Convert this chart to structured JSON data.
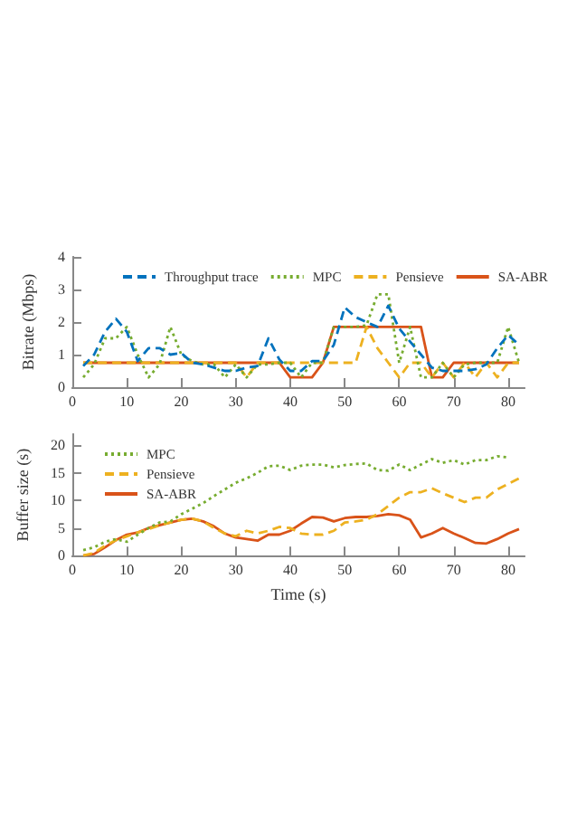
{
  "chart_data": [
    {
      "type": "line",
      "ylabel": "Bitrate (Mbps)",
      "x": [
        2,
        4,
        6,
        8,
        10,
        12,
        14,
        16,
        18,
        20,
        22,
        24,
        26,
        28,
        30,
        32,
        34,
        36,
        38,
        40,
        42,
        44,
        46,
        48,
        50,
        52,
        54,
        56,
        58,
        60,
        62,
        64,
        66,
        68,
        70,
        72,
        74,
        76,
        78,
        80,
        82
      ],
      "xlim": [
        0,
        83
      ],
      "xticks": [
        0,
        10,
        20,
        30,
        40,
        50,
        60,
        70,
        80
      ],
      "ylim": [
        0,
        4
      ],
      "yticks": [
        0,
        1,
        2,
        3,
        4
      ],
      "grid": false,
      "legend": "top",
      "marker": "none",
      "series": [
        {
          "name": "Throughput trace",
          "color": "#0072bd",
          "line_style": "dashed",
          "values": [
            0.65,
            1.0,
            1.7,
            2.1,
            1.7,
            0.8,
            1.2,
            1.2,
            1.0,
            1.05,
            0.75,
            0.7,
            0.6,
            0.5,
            0.5,
            0.6,
            0.65,
            1.5,
            0.85,
            0.5,
            0.5,
            0.8,
            0.8,
            1.3,
            2.45,
            2.15,
            2.0,
            1.85,
            2.5,
            1.8,
            1.4,
            1.0,
            0.6,
            0.5,
            0.5,
            0.5,
            0.55,
            0.7,
            1.2,
            1.6,
            1.3
          ]
        },
        {
          "name": "MPC",
          "color": "#77ac30",
          "line_style": "dotted",
          "values": [
            0.3,
            0.7,
            1.5,
            1.5,
            1.85,
            1.0,
            0.3,
            0.7,
            1.85,
            1.0,
            0.8,
            0.7,
            0.7,
            0.3,
            0.7,
            0.3,
            0.7,
            0.7,
            0.75,
            0.75,
            0.3,
            0.75,
            0.75,
            1.85,
            1.85,
            1.85,
            1.9,
            2.85,
            2.85,
            0.75,
            1.85,
            0.3,
            0.3,
            0.75,
            0.3,
            0.7,
            0.75,
            0.75,
            0.75,
            1.85,
            0.75
          ]
        },
        {
          "name": "Pensieve",
          "color": "#edb120",
          "line_style": "dashed",
          "values": [
            0.75,
            0.75,
            0.75,
            0.75,
            0.75,
            0.75,
            0.75,
            0.75,
            0.75,
            0.75,
            0.75,
            0.75,
            0.75,
            0.75,
            0.75,
            0.3,
            0.75,
            0.75,
            0.75,
            0.75,
            0.75,
            0.75,
            0.75,
            0.75,
            0.75,
            0.75,
            1.85,
            1.2,
            0.75,
            0.3,
            0.75,
            0.75,
            0.3,
            0.75,
            0.3,
            0.75,
            0.3,
            0.75,
            0.3,
            0.75,
            0.75
          ]
        },
        {
          "name": "SA-ABR",
          "color": "#d95319",
          "line_style": "solid",
          "values": [
            0.75,
            0.75,
            0.75,
            0.75,
            0.75,
            0.75,
            0.75,
            0.75,
            0.75,
            0.75,
            0.75,
            0.75,
            0.75,
            0.75,
            0.75,
            0.75,
            0.75,
            0.75,
            0.75,
            0.3,
            0.3,
            0.3,
            0.75,
            1.85,
            1.85,
            1.85,
            1.85,
            1.85,
            1.85,
            1.85,
            1.85,
            1.85,
            0.3,
            0.3,
            0.75,
            0.75,
            0.75,
            0.75,
            0.75,
            0.75,
            0.75
          ]
        }
      ]
    },
    {
      "type": "line",
      "xlabel": "Time (s)",
      "ylabel": "Buffer size (s)",
      "x": [
        2,
        4,
        6,
        8,
        10,
        12,
        14,
        16,
        18,
        20,
        22,
        24,
        26,
        28,
        30,
        32,
        34,
        36,
        38,
        40,
        42,
        44,
        46,
        48,
        50,
        52,
        54,
        56,
        58,
        60,
        62,
        64,
        66,
        68,
        70,
        72,
        74,
        76,
        78,
        80,
        82
      ],
      "xlim": [
        0,
        83
      ],
      "xticks": [
        0,
        10,
        20,
        30,
        40,
        50,
        60,
        70,
        80
      ],
      "ylim": [
        0,
        22
      ],
      "yticks": [
        0,
        5,
        10,
        15,
        20
      ],
      "grid": false,
      "legend": "top left",
      "marker": "none",
      "series": [
        {
          "name": "MPC",
          "color": "#77ac30",
          "line_style": "dotted",
          "values": [
            1,
            1.5,
            2.5,
            3,
            2.5,
            3.8,
            5,
            6,
            6.2,
            7.5,
            8.5,
            9.5,
            10.8,
            12,
            13.2,
            14,
            15,
            16.2,
            16.3,
            15.5,
            16.3,
            16.5,
            16.5,
            16,
            16.4,
            16.6,
            16.7,
            15.5,
            15.4,
            16.5,
            15.5,
            16.5,
            17.5,
            16.8,
            17.3,
            16.5,
            17.3,
            17.3,
            18,
            17.8,
            null
          ]
        },
        {
          "name": "Pensieve",
          "color": "#edb120",
          "line_style": "dashed",
          "values": [
            0,
            0.5,
            1.8,
            2.8,
            3.5,
            4.2,
            4.8,
            5.5,
            6,
            6.5,
            6.7,
            6.2,
            5,
            4,
            3.5,
            4.5,
            4,
            4.5,
            5.2,
            5,
            4,
            3.8,
            3.8,
            4.5,
            6,
            6.2,
            6.5,
            7.5,
            9,
            10.5,
            11.5,
            11.5,
            12.2,
            11.3,
            10.5,
            9.7,
            10.5,
            10.5,
            12,
            13,
            14
          ]
        },
        {
          "name": "SA-ABR",
          "color": "#d95319",
          "line_style": "solid",
          "values": [
            0,
            0.3,
            1.5,
            2.8,
            3.8,
            4.2,
            5,
            5.5,
            6,
            6.5,
            6.7,
            6.2,
            5.3,
            4,
            3.3,
            3,
            2.7,
            3.8,
            3.8,
            4.5,
            5.8,
            7,
            6.9,
            6.2,
            6.8,
            7,
            7,
            7.2,
            7.5,
            7.3,
            6.5,
            3.3,
            4,
            5,
            4,
            3.2,
            2.3,
            2.2,
            3,
            4,
            4.8
          ]
        }
      ]
    }
  ]
}
